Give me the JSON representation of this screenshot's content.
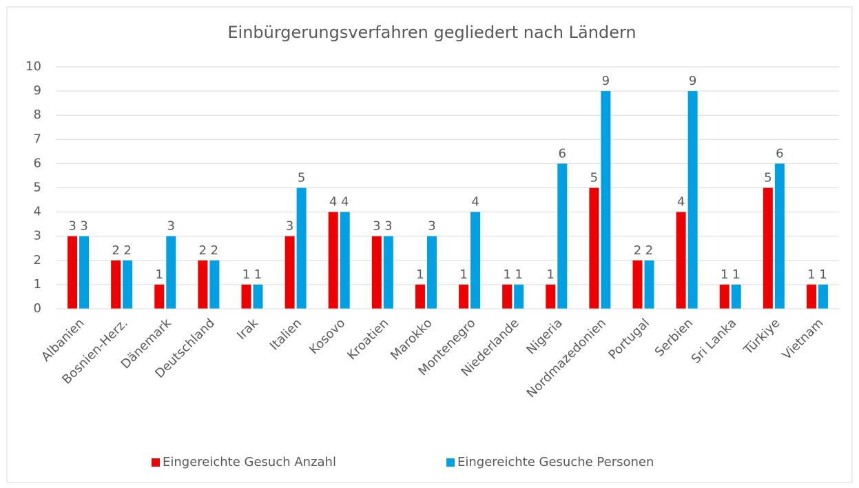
{
  "chart_data": {
    "type": "bar",
    "title": "Einbürgerungsverfahren gegliedert nach Ländern",
    "categories": [
      "Albanien",
      "Bosnien-Herz.",
      "Dänemark",
      "Deutschland",
      "Irak",
      "Italien",
      "Kosovo",
      "Kroatien",
      "Marokko",
      "Montenegro",
      "Niederlande",
      "Nigeria",
      "Nordmazedonien",
      "Portugal",
      "Serbien",
      "Sri Lanka",
      "Türkiye",
      "Vietnam"
    ],
    "series": [
      {
        "name": "Eingereichte Gesuch Anzahl",
        "color": "#ee0000",
        "values": [
          3,
          2,
          1,
          2,
          1,
          3,
          4,
          3,
          1,
          1,
          1,
          1,
          5,
          2,
          4,
          1,
          5,
          1
        ]
      },
      {
        "name": "Eingereichte Gesuche Personen",
        "color": "#00a0e3",
        "values": [
          3,
          2,
          3,
          2,
          1,
          5,
          4,
          3,
          3,
          4,
          1,
          6,
          9,
          2,
          9,
          1,
          6,
          1
        ]
      }
    ],
    "ylim": [
      0,
      10
    ],
    "yticks": [
      0,
      1,
      2,
      3,
      4,
      5,
      6,
      7,
      8,
      9,
      10
    ],
    "grid": true,
    "legend": "bottom"
  }
}
